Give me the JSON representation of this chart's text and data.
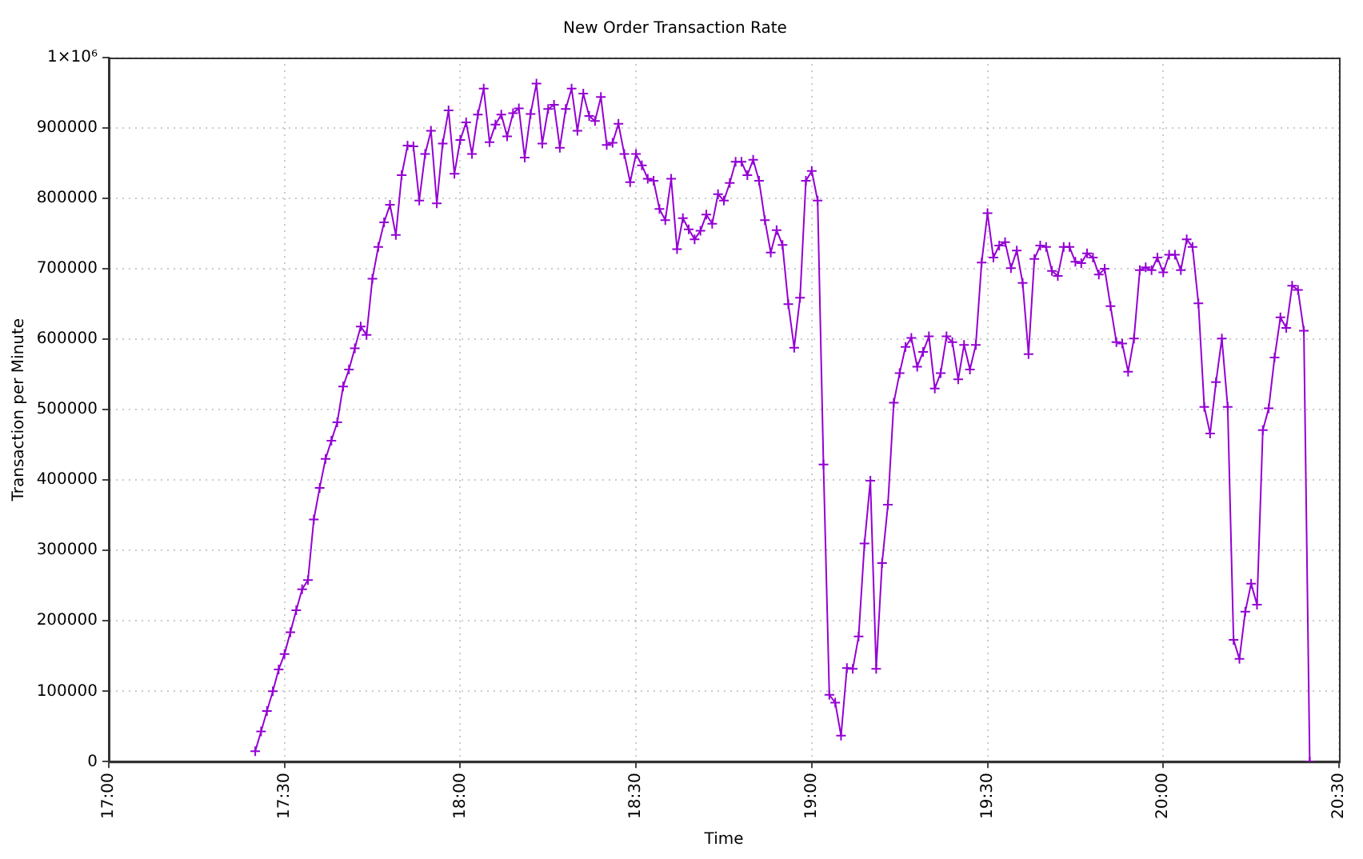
{
  "chart_data": {
    "type": "line",
    "title": "New Order Transaction Rate",
    "xlabel": "Time",
    "ylabel": "Transaction per Minute",
    "xlim": [
      17,
      20.5
    ],
    "xticks": [
      {
        "value": 17,
        "label": "17:00"
      },
      {
        "value": 17.5,
        "label": "17:30"
      },
      {
        "value": 18,
        "label": "18:00"
      },
      {
        "value": 18.5,
        "label": "18:30"
      },
      {
        "value": 19,
        "label": "19:00"
      },
      {
        "value": 19.5,
        "label": "19:30"
      },
      {
        "value": 20,
        "label": "20:00"
      },
      {
        "value": 20.5,
        "label": "20:30"
      }
    ],
    "ylim": [
      0,
      1000000
    ],
    "yticks": [
      0,
      100000,
      200000,
      300000,
      400000,
      500000,
      600000,
      700000,
      800000,
      900000,
      {
        "value": 1000000,
        "label": "1×10⁶"
      }
    ],
    "grid": true,
    "legend": false,
    "marker": "cross",
    "line_style": "solid",
    "x": [
      17.4167,
      17.4333,
      17.45,
      17.4667,
      17.4833,
      17.5,
      17.5167,
      17.5333,
      17.55,
      17.5667,
      17.5833,
      17.6,
      17.6167,
      17.6333,
      17.65,
      17.6667,
      17.6833,
      17.7,
      17.7167,
      17.7333,
      17.75,
      17.7667,
      17.7833,
      17.8,
      17.8167,
      17.8333,
      17.85,
      17.8667,
      17.8833,
      17.9,
      17.9167,
      17.9333,
      17.95,
      17.9667,
      17.9833,
      18,
      18.0167,
      18.0333,
      18.05,
      18.0667,
      18.0833,
      18.1,
      18.1167,
      18.1333,
      18.15,
      18.1667,
      18.1833,
      18.2,
      18.2167,
      18.2333,
      18.25,
      18.2667,
      18.2833,
      18.3,
      18.3167,
      18.3333,
      18.35,
      18.3667,
      18.3833,
      18.4,
      18.4167,
      18.4333,
      18.45,
      18.4667,
      18.4833,
      18.5,
      18.5167,
      18.5333,
      18.55,
      18.5667,
      18.5833,
      18.6,
      18.6167,
      18.6333,
      18.65,
      18.6667,
      18.6833,
      18.7,
      18.7167,
      18.7333,
      18.75,
      18.7667,
      18.7833,
      18.8,
      18.8167,
      18.8333,
      18.85,
      18.8667,
      18.8833,
      18.9,
      18.9167,
      18.9333,
      18.95,
      18.9667,
      18.9833,
      19,
      19.0167,
      19.0333,
      19.05,
      19.0667,
      19.0833,
      19.1,
      19.1167,
      19.1333,
      19.15,
      19.1667,
      19.1833,
      19.2,
      19.2167,
      19.2333,
      19.25,
      19.2667,
      19.2833,
      19.3,
      19.3167,
      19.3333,
      19.35,
      19.3667,
      19.3833,
      19.4,
      19.4167,
      19.4333,
      19.45,
      19.4667,
      19.4833,
      19.5,
      19.5167,
      19.5333,
      19.55,
      19.5667,
      19.5833,
      19.6,
      19.6167,
      19.6333,
      19.65,
      19.6667,
      19.6833,
      19.7,
      19.7167,
      19.7333,
      19.75,
      19.7667,
      19.7833,
      19.8,
      19.8167,
      19.8333,
      19.85,
      19.8667,
      19.8833,
      19.9,
      19.9167,
      19.9333,
      19.95,
      19.9667,
      19.9833,
      20,
      20.0167,
      20.0333,
      20.05,
      20.0667,
      20.0833,
      20.1,
      20.1167,
      20.1333,
      20.15,
      20.1667,
      20.1833,
      20.2,
      20.2167,
      20.2333,
      20.25,
      20.2667,
      20.2833,
      20.3,
      20.3167,
      20.3333,
      20.35,
      20.3667,
      20.3833,
      20.4,
      20.4167
    ],
    "series": [
      {
        "color": "#9400d3",
        "values": [
          15000,
          43000,
          72000,
          100000,
          131000,
          153000,
          184000,
          215000,
          245000,
          258000,
          344000,
          389000,
          430000,
          456000,
          482000,
          533000,
          557000,
          587000,
          618000,
          606000,
          686000,
          731000,
          766000,
          791000,
          748000,
          833000,
          875000,
          874000,
          797000,
          863000,
          896000,
          793000,
          878000,
          925000,
          835000,
          883000,
          908000,
          863000,
          919000,
          956000,
          880000,
          905000,
          919000,
          888000,
          921000,
          928000,
          858000,
          920000,
          963000,
          878000,
          927000,
          933000,
          872000,
          927000,
          956000,
          896000,
          949000,
          917000,
          910000,
          944000,
          876000,
          879000,
          906000,
          863000,
          823000,
          863000,
          847000,
          828000,
          825000,
          785000,
          769000,
          828000,
          728000,
          772000,
          756000,
          742000,
          754000,
          777000,
          764000,
          806000,
          797000,
          822000,
          852000,
          852000,
          833000,
          855000,
          825000,
          769000,
          723000,
          755000,
          734000,
          650000,
          588000,
          659000,
          825000,
          839000,
          797000,
          422000,
          95000,
          84000,
          37000,
          133000,
          132000,
          178000,
          310000,
          399000,
          132000,
          282000,
          365000,
          510000,
          552000,
          589000,
          602000,
          561000,
          582000,
          604000,
          530000,
          552000,
          604000,
          596000,
          543000,
          592000,
          557000,
          592000,
          709000,
          779000,
          716000,
          733000,
          738000,
          701000,
          726000,
          680000,
          579000,
          714000,
          733000,
          731000,
          697000,
          690000,
          731000,
          731000,
          710000,
          708000,
          722000,
          716000,
          692000,
          700000,
          647000,
          596000,
          594000,
          554000,
          601000,
          698000,
          702000,
          698000,
          716000,
          695000,
          720000,
          720000,
          698000,
          742000,
          731000,
          651000,
          504000,
          466000,
          539000,
          601000,
          504000,
          173000,
          146000,
          213000,
          253000,
          223000,
          471000,
          502000,
          574000,
          631000,
          616000,
          676000,
          670000,
          612000,
          0
        ]
      }
    ]
  }
}
